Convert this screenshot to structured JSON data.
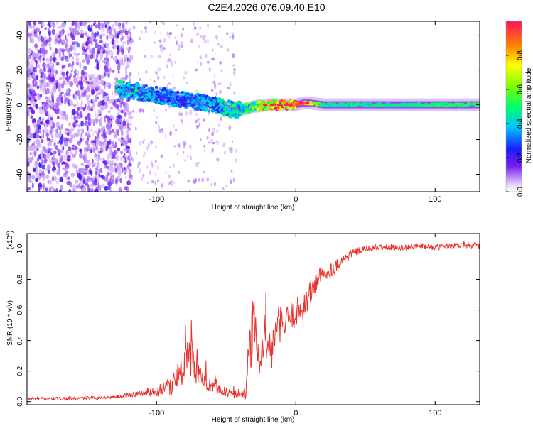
{
  "title": "C2E4.2026.076.09.40.E10",
  "chart_data": [
    {
      "type": "heatmap",
      "title": "C2E4.2026.076.09.40.E10",
      "xlabel": "Height of straight line (km)",
      "ylabel": "Frequency (Hz)",
      "xlim": [
        -193,
        132
      ],
      "ylim": [
        -50,
        48
      ],
      "xticks": [
        "-100",
        "0",
        "100"
      ],
      "xtick_values": [
        -100,
        0,
        100
      ],
      "yticks": [
        "40",
        "20",
        "0",
        "-20",
        "-40"
      ],
      "ytick_values": [
        40,
        20,
        0,
        -20,
        -40
      ],
      "colorbar": {
        "label": "Normalized spectral amplitude",
        "range": [
          0.0,
          1.0
        ],
        "ticks": [
          "0.0",
          "0.2",
          "0.4",
          "0.6",
          "0.8"
        ],
        "tick_values": [
          0.0,
          0.2,
          0.4,
          0.6,
          0.8
        ]
      },
      "ridge": {
        "description_x": [
          -125,
          -110,
          -95,
          -80,
          -65,
          -50,
          -40,
          -30,
          -20,
          -10,
          0,
          5,
          10,
          20,
          50,
          80,
          110,
          132
        ],
        "center_hz": [
          9,
          7,
          5,
          3,
          1,
          -2,
          -3,
          -1,
          0,
          0,
          0,
          1,
          1,
          0,
          0,
          0,
          0,
          0
        ],
        "amplitude": [
          0.45,
          0.4,
          0.38,
          0.35,
          0.38,
          0.45,
          0.5,
          0.6,
          0.9,
          0.95,
          1.0,
          0.95,
          0.8,
          0.5,
          0.5,
          0.5,
          0.55,
          0.55
        ]
      }
    },
    {
      "type": "line",
      "xlabel": "Height of straight line (km)",
      "ylabel": "SNR (10 * v/v)",
      "yscale_note": "(x10",
      "yscale_exp": "4",
      "close_paren": ")",
      "xlim": [
        -193,
        132
      ],
      "ylim": [
        -0.02,
        1.1
      ],
      "xticks": [
        "-100",
        "0",
        "100"
      ],
      "xtick_values": [
        -100,
        0,
        100
      ],
      "yticks": [
        "0.0",
        "0.2",
        "0.4",
        "0.6",
        "0.8",
        "1.0"
      ],
      "ytick_values": [
        0.0,
        0.2,
        0.4,
        0.6,
        0.8,
        1.0
      ],
      "color": "#e8342f",
      "series_envelope": {
        "x": [
          -193,
          -160,
          -130,
          -115,
          -100,
          -90,
          -85,
          -80,
          -77,
          -73,
          -70,
          -65,
          -60,
          -55,
          -50,
          -45,
          -40,
          -37,
          -35,
          -33,
          -30,
          -27,
          -25,
          -23,
          -20,
          -17,
          -15,
          -12,
          -10,
          -5,
          0,
          5,
          10,
          15,
          20,
          25,
          30,
          40,
          50,
          60,
          70,
          80,
          90,
          100,
          110,
          120,
          132
        ],
        "y": [
          0.02,
          0.02,
          0.03,
          0.05,
          0.07,
          0.1,
          0.15,
          0.22,
          0.33,
          0.25,
          0.18,
          0.13,
          0.1,
          0.08,
          0.06,
          0.05,
          0.04,
          0.05,
          0.12,
          0.35,
          0.55,
          0.25,
          0.2,
          0.45,
          0.38,
          0.32,
          0.45,
          0.52,
          0.48,
          0.55,
          0.58,
          0.62,
          0.7,
          0.8,
          0.83,
          0.86,
          0.9,
          0.97,
          1.0,
          1.01,
          1.01,
          1.01,
          1.02,
          1.01,
          1.02,
          1.03,
          1.02
        ],
        "noise": [
          0.01,
          0.01,
          0.01,
          0.02,
          0.04,
          0.06,
          0.08,
          0.12,
          0.14,
          0.12,
          0.08,
          0.06,
          0.05,
          0.04,
          0.03,
          0.03,
          0.02,
          0.04,
          0.1,
          0.18,
          0.22,
          0.12,
          0.1,
          0.18,
          0.15,
          0.12,
          0.12,
          0.12,
          0.12,
          0.1,
          0.1,
          0.1,
          0.1,
          0.08,
          0.06,
          0.05,
          0.04,
          0.03,
          0.02,
          0.02,
          0.02,
          0.02,
          0.02,
          0.02,
          0.02,
          0.02,
          0.02
        ]
      }
    }
  ]
}
